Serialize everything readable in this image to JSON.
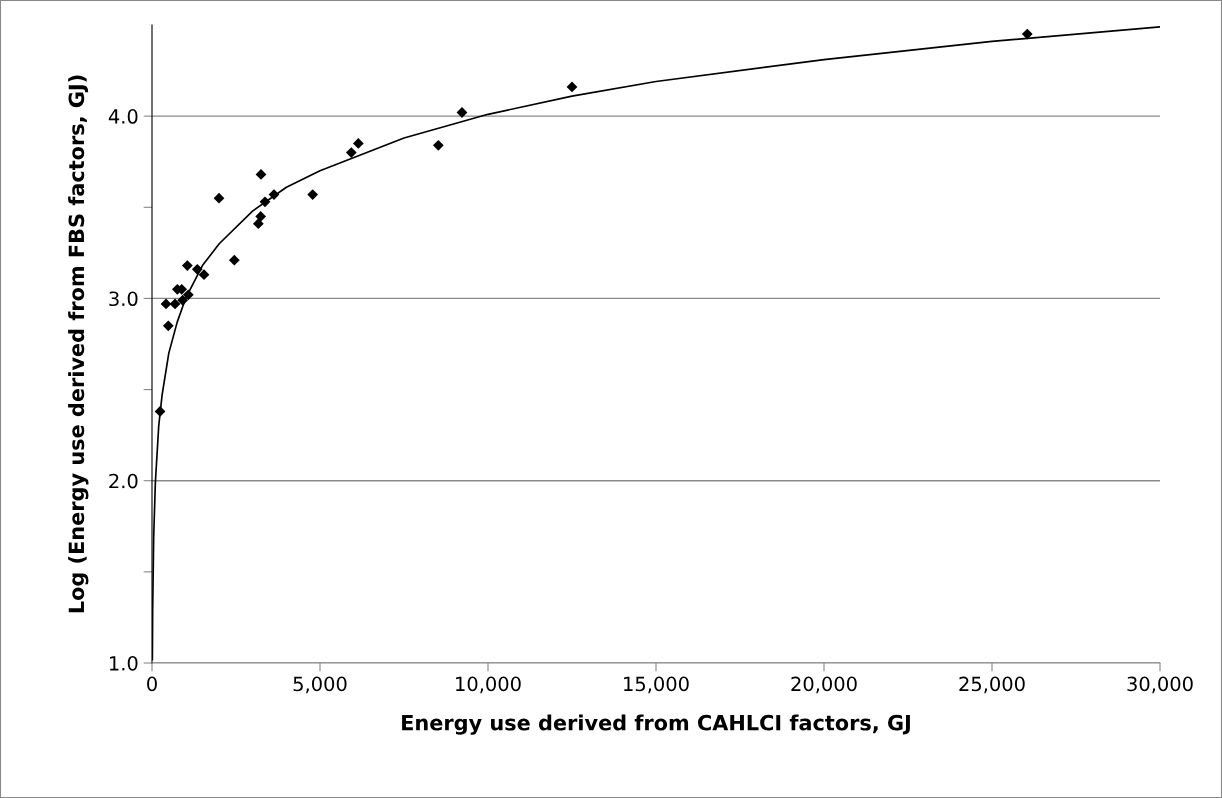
{
  "chart_data": {
    "type": "scatter",
    "xlabel": "Energy use derived from CAHLCI factors, GJ",
    "ylabel": "Log (Energy use derived from FBS factors, GJ)",
    "xlim": [
      0,
      30000
    ],
    "xticks": [
      {
        "value": 0,
        "label": "0"
      },
      {
        "value": 5000,
        "label": "5,000"
      },
      {
        "value": 10000,
        "label": "10,000"
      },
      {
        "value": 15000,
        "label": "15,000"
      },
      {
        "value": 20000,
        "label": "20,000"
      },
      {
        "value": 25000,
        "label": "25,000"
      },
      {
        "value": 30000,
        "label": "30,000"
      }
    ],
    "ylim": [
      1,
      4.5
    ],
    "yticks": [
      {
        "value": 1,
        "label": "1.0"
      },
      {
        "value": 1.5,
        "label": null
      },
      {
        "value": 2,
        "label": "2.0"
      },
      {
        "value": 2.5,
        "label": null
      },
      {
        "value": 3,
        "label": "3.0"
      },
      {
        "value": 3.5,
        "label": null
      },
      {
        "value": 4,
        "label": "4.0"
      }
    ],
    "grid": "y",
    "marker": "diamond",
    "legend": false,
    "series": [
      {
        "color": "#000000",
        "x": [
          240,
          485,
          417,
          685,
          754,
          884,
          913,
          1081,
          1052,
          1349,
          1548,
          1994,
          2450,
          3165,
          3234,
          3244,
          3363,
          3631,
          4782,
          5932,
          6141,
          8522,
          9226,
          12500,
          26050
        ],
        "values": [
          2.38,
          2.85,
          2.97,
          2.97,
          3.05,
          3.05,
          2.99,
          3.02,
          3.18,
          3.16,
          3.13,
          3.55,
          3.21,
          3.41,
          3.45,
          3.68,
          3.53,
          3.57,
          3.57,
          3.8,
          3.85,
          3.84,
          4.02,
          4.16,
          4.45
        ]
      },
      {
        "type": "line",
        "color": "#000000",
        "marker": "none",
        "line_style": "solid",
        "x": [
          11,
          20,
          50,
          100,
          200,
          300,
          500,
          750,
          1000,
          1500,
          2000,
          3000,
          4000,
          5000,
          7500,
          10000,
          12500,
          15000,
          20000,
          25000,
          30000
        ],
        "values": [
          1.02,
          1.29,
          1.69,
          1.99,
          2.3,
          2.47,
          2.7,
          2.87,
          3.0,
          3.18,
          3.3,
          3.48,
          3.61,
          3.7,
          3.88,
          4.01,
          4.11,
          4.19,
          4.31,
          4.41,
          4.49
        ]
      }
    ]
  }
}
